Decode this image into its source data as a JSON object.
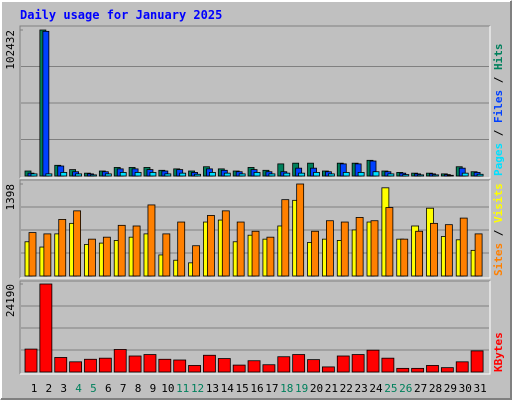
{
  "chart_data": [
    {
      "type": "bar",
      "title": "Daily usage for January 2025",
      "legend_separator": " / ",
      "ylim": [
        0,
        102432
      ],
      "yticks": [
        102432
      ],
      "grid": true,
      "series": [
        {
          "name": "Hits",
          "color": "#00805c",
          "values": [
            3500,
            102432,
            7500,
            4500,
            2000,
            3500,
            6000,
            6000,
            6000,
            4000,
            5000,
            3500,
            6500,
            5000,
            3500,
            6000,
            4000,
            8500,
            9000,
            9000,
            3500,
            9000,
            9000,
            11000,
            3500,
            2500,
            2000,
            2000,
            1500,
            6500,
            3000
          ]
        },
        {
          "name": "Files",
          "color": "#0040ff",
          "values": [
            2000,
            101500,
            7000,
            3000,
            1500,
            3000,
            5000,
            5000,
            4500,
            3500,
            4500,
            2500,
            5000,
            4000,
            3000,
            4500,
            3000,
            3000,
            5500,
            5500,
            3000,
            8500,
            8500,
            10500,
            3000,
            2000,
            1500,
            1500,
            1000,
            5500,
            2500
          ]
        },
        {
          "name": "Pages",
          "color": "#00e0ff",
          "values": [
            1500,
            1500,
            2500,
            1500,
            800,
            1500,
            2500,
            2500,
            2500,
            1500,
            2000,
            1200,
            2500,
            2000,
            1500,
            2500,
            1500,
            2000,
            2000,
            2500,
            1500,
            2500,
            2500,
            3000,
            1500,
            1000,
            800,
            800,
            500,
            2000,
            1200
          ]
        }
      ]
    },
    {
      "type": "bar",
      "legend_separator": " / ",
      "ylim": [
        0,
        1398
      ],
      "yticks": [
        1398
      ],
      "grid": true,
      "series": [
        {
          "name": "Visits",
          "color": "#ffff00",
          "values": [
            520,
            440,
            640,
            800,
            480,
            500,
            540,
            590,
            640,
            320,
            240,
            200,
            820,
            850,
            520,
            620,
            560,
            760,
            1150,
            510,
            560,
            540,
            700,
            820,
            1340,
            560,
            760,
            1030,
            600,
            550,
            390
          ]
        },
        {
          "name": "Sites",
          "color": "#ff8000",
          "values": [
            660,
            640,
            860,
            990,
            560,
            590,
            770,
            760,
            1080,
            640,
            820,
            460,
            920,
            990,
            820,
            680,
            590,
            1160,
            1398,
            680,
            840,
            820,
            890,
            840,
            1040,
            560,
            680,
            800,
            780,
            880,
            640
          ]
        }
      ]
    },
    {
      "type": "bar",
      "ylim": [
        0,
        24190
      ],
      "yticks": [
        24190
      ],
      "grid": true,
      "categories": [
        "1",
        "2",
        "3",
        "4",
        "5",
        "6",
        "7",
        "8",
        "9",
        "10",
        "11",
        "12",
        "13",
        "14",
        "15",
        "16",
        "17",
        "18",
        "19",
        "20",
        "21",
        "22",
        "23",
        "24",
        "25",
        "26",
        "27",
        "28",
        "29",
        "30",
        "31"
      ],
      "category_colors": [
        "#000000",
        "#000000",
        "#000000",
        "#00805c",
        "#00805c",
        "#000000",
        "#000000",
        "#000000",
        "#000000",
        "#000000",
        "#00805c",
        "#00805c",
        "#000000",
        "#000000",
        "#000000",
        "#000000",
        "#000000",
        "#00805c",
        "#00805c",
        "#000000",
        "#000000",
        "#000000",
        "#000000",
        "#000000",
        "#00805c",
        "#00805c",
        "#000000",
        "#000000",
        "#000000",
        "#000000",
        "#000000"
      ],
      "series": [
        {
          "name": "KBytes",
          "color": "#ff0000",
          "values": [
            6300,
            24190,
            4000,
            2800,
            3500,
            3800,
            6200,
            4400,
            4800,
            3500,
            3300,
            1800,
            4600,
            3700,
            1900,
            3100,
            2000,
            4200,
            4800,
            3400,
            1400,
            4400,
            4800,
            6000,
            3800,
            1000,
            1000,
            1800,
            1200,
            2800,
            5800
          ]
        }
      ]
    }
  ]
}
